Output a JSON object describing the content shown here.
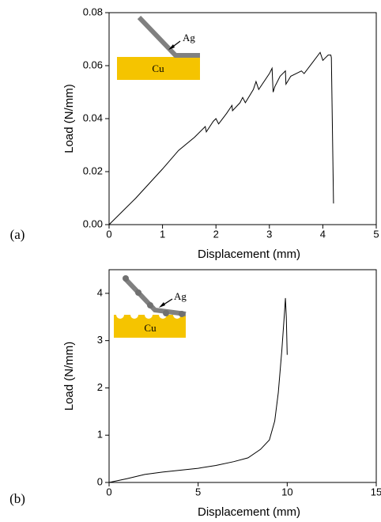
{
  "chart_data": [
    {
      "type": "line",
      "panel_label": "(a)",
      "x_label": "Displacement (mm)",
      "y_label": "Load (N/mm)",
      "inset_labels": [
        "Ag",
        "Cu"
      ],
      "x": [
        0,
        0.5,
        1.0,
        1.3,
        1.6,
        1.8,
        1.82,
        1.95,
        2.0,
        2.05,
        2.2,
        2.3,
        2.31,
        2.45,
        2.5,
        2.55,
        2.7,
        2.75,
        2.8,
        3.0,
        3.05,
        3.07,
        3.1,
        3.2,
        3.3,
        3.31,
        3.4,
        3.6,
        3.65,
        3.8,
        3.95,
        4.0,
        4.05,
        4.1,
        4.15,
        4.16,
        4.2
      ],
      "values": [
        0,
        0.01,
        0.021,
        0.028,
        0.033,
        0.037,
        0.035,
        0.039,
        0.04,
        0.038,
        0.042,
        0.045,
        0.043,
        0.046,
        0.048,
        0.046,
        0.051,
        0.054,
        0.051,
        0.057,
        0.059,
        0.05,
        0.052,
        0.056,
        0.058,
        0.053,
        0.056,
        0.058,
        0.057,
        0.061,
        0.065,
        0.062,
        0.063,
        0.064,
        0.064,
        0.063,
        0.008
      ],
      "color": "#000000",
      "xlim": [
        0,
        5
      ],
      "xticks": [
        0,
        1,
        2,
        3,
        4,
        5
      ],
      "ylim": [
        0,
        0.08
      ],
      "yticks": [
        {
          "value": 0,
          "label": "0.00"
        },
        {
          "value": 0.02,
          "label": "0.02"
        },
        {
          "value": 0.04,
          "label": "0.04"
        },
        {
          "value": 0.06,
          "label": "0.06"
        },
        {
          "value": 0.08,
          "label": "0.08"
        }
      ]
    },
    {
      "type": "line",
      "panel_label": "(b)",
      "x_label": "Displacement (mm)",
      "y_label": "Load (N/mm)",
      "inset_labels": [
        "Ag",
        "Cu"
      ],
      "x": [
        0,
        1,
        2,
        3,
        4,
        5,
        6,
        7,
        7.8,
        8.5,
        9,
        9.3,
        9.5,
        9.7,
        9.85,
        9.9,
        9.95,
        10.0
      ],
      "values": [
        0,
        0.08,
        0.17,
        0.22,
        0.26,
        0.3,
        0.36,
        0.44,
        0.52,
        0.7,
        0.9,
        1.3,
        1.9,
        2.8,
        3.6,
        3.9,
        3.5,
        2.7
      ],
      "color": "#000000",
      "xlim": [
        0,
        15
      ],
      "xticks": [
        0,
        5,
        10,
        15
      ],
      "ylim": [
        0,
        4.5
      ],
      "yticks": [
        0,
        1,
        2,
        3,
        4
      ]
    }
  ]
}
